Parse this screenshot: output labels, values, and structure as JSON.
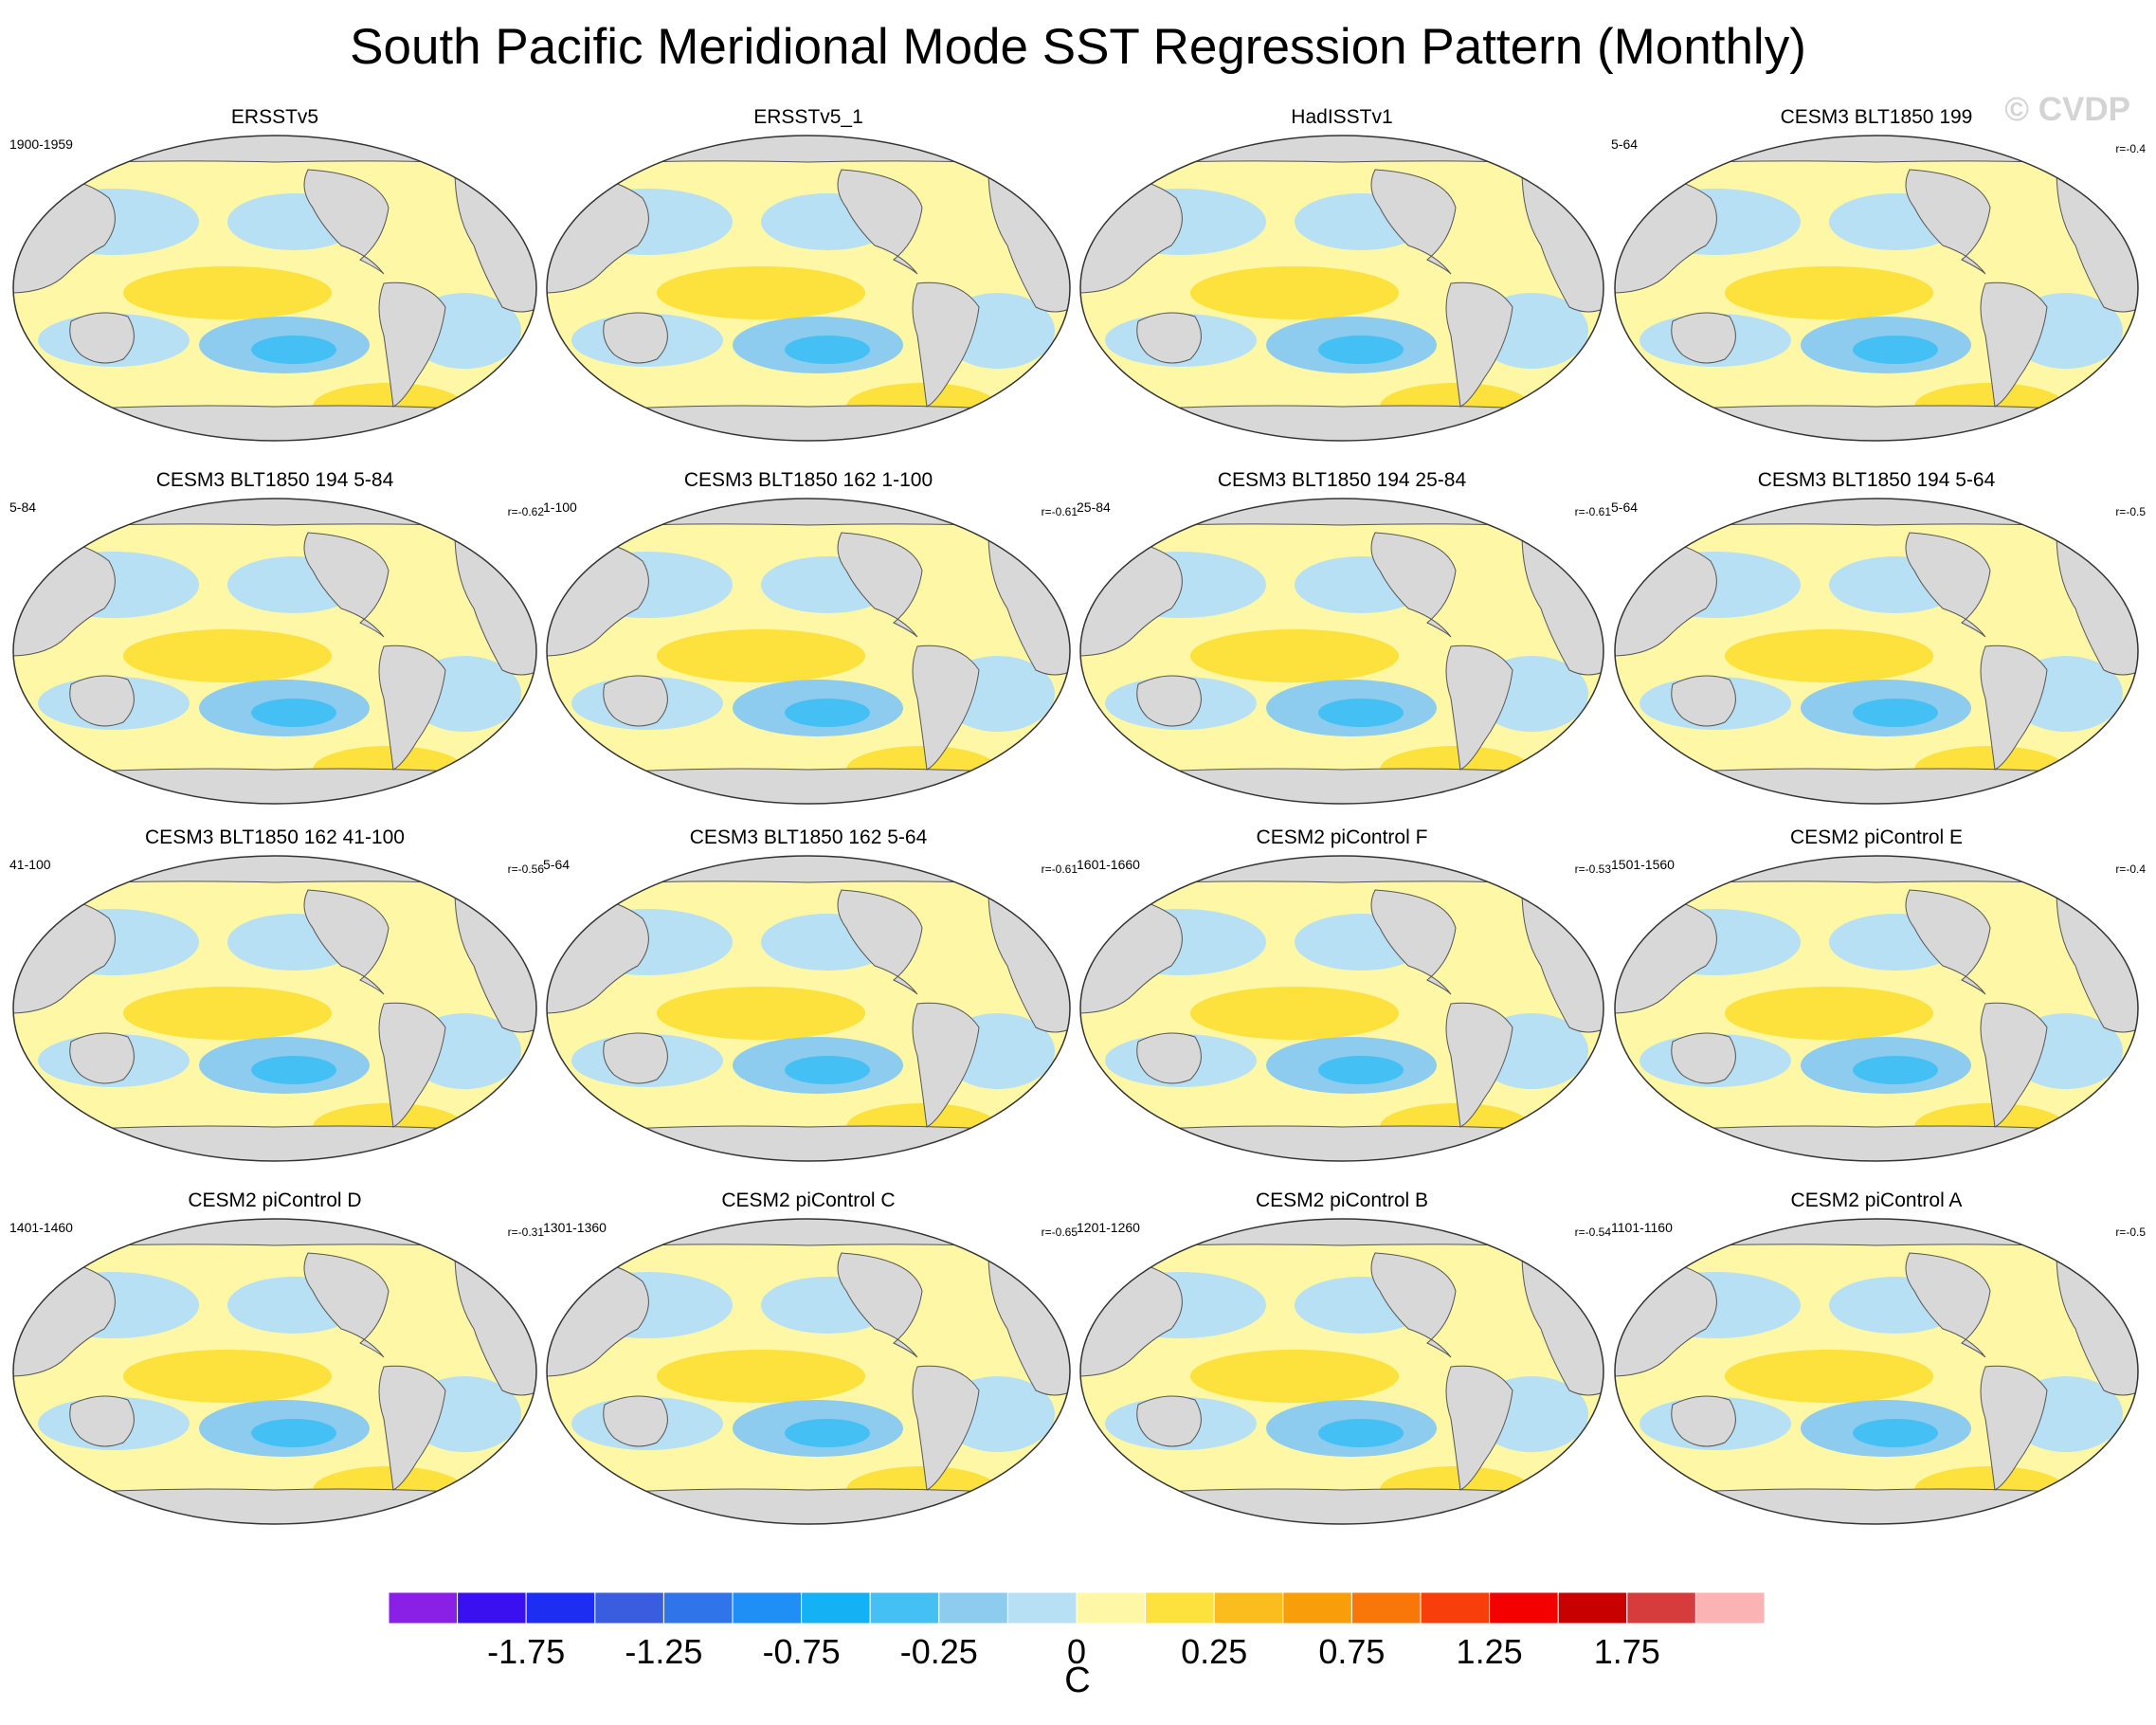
{
  "title": "South Pacific Meridional Mode SST Regression Pattern (Monthly)",
  "watermark": "© CVDP",
  "panels": [
    {
      "title": "ERSSTv5",
      "years": "1900-1959",
      "corr": ""
    },
    {
      "title": "ERSSTv5_1",
      "years": "",
      "corr": ""
    },
    {
      "title": "HadISSTv1",
      "years": "",
      "corr": ""
    },
    {
      "title": "CESM3 BLT1850 199",
      "years": "5-64",
      "corr": "r=-0.4"
    },
    {
      "title": "CESM3 BLT1850 194 5-84",
      "years": "5-84",
      "corr": "r=-0.62"
    },
    {
      "title": "CESM3 BLT1850 162 1-100",
      "years": "1-100",
      "corr": "r=-0.61"
    },
    {
      "title": "CESM3 BLT1850 194 25-84",
      "years": "25-84",
      "corr": "r=-0.61"
    },
    {
      "title": "CESM3 BLT1850 194 5-64",
      "years": "5-64",
      "corr": "r=-0.5"
    },
    {
      "title": "CESM3 BLT1850 162 41-100",
      "years": "41-100",
      "corr": "r=-0.56"
    },
    {
      "title": "CESM3 BLT1850 162 5-64",
      "years": "5-64",
      "corr": "r=-0.61"
    },
    {
      "title": "CESM2 piControl F",
      "years": "1601-1660",
      "corr": "r=-0.53"
    },
    {
      "title": "CESM2 piControl E",
      "years": "1501-1560",
      "corr": "r=-0.4"
    },
    {
      "title": "CESM2 piControl D",
      "years": "1401-1460",
      "corr": "r=-0.31"
    },
    {
      "title": "CESM2 piControl C",
      "years": "1301-1360",
      "corr": "r=-0.65"
    },
    {
      "title": "CESM2 piControl B",
      "years": "1201-1260",
      "corr": "r=-0.54"
    },
    {
      "title": "CESM2 piControl A",
      "years": "1101-1160",
      "corr": "r=-0.5"
    }
  ],
  "colorbar": {
    "units": "C",
    "colors": [
      "#8a1fe6",
      "#3a0ff0",
      "#1d2ef2",
      "#3a5ddf",
      "#2f74e8",
      "#1f8ef5",
      "#14b1f5",
      "#45c0f4",
      "#8dcbef",
      "#b7e0f4",
      "#fef8a6",
      "#fde13c",
      "#fbbd1d",
      "#fa9d0a",
      "#f97708",
      "#f83f0b",
      "#f40000",
      "#c90000",
      "#d73c3c",
      "#fcb3b3"
    ],
    "ticks": [
      {
        "label": "-1.75",
        "boundary": 2
      },
      {
        "label": "-1.25",
        "boundary": 4
      },
      {
        "label": "-0.75",
        "boundary": 6
      },
      {
        "label": "-0.25",
        "boundary": 8
      },
      {
        "label": "0",
        "boundary": 10
      },
      {
        "label": "0.25",
        "boundary": 12
      },
      {
        "label": "0.75",
        "boundary": 14
      },
      {
        "label": "1.25",
        "boundary": 16
      },
      {
        "label": "1.75",
        "boundary": 18
      }
    ]
  },
  "chart_data": {
    "type": "heatmap",
    "title": "South Pacific Meridional Mode SST Regression Pattern (Monthly)",
    "projection": "Robinson, Pacific-centered",
    "variable": "SST regression",
    "units": "C",
    "contour_levels": [
      -2,
      -1.75,
      -1.5,
      -1.25,
      -1,
      -0.75,
      -0.5,
      -0.25,
      -0.1,
      0,
      0.1,
      0.25,
      0.5,
      0.75,
      1,
      1.25,
      1.5,
      1.75,
      2
    ],
    "panels": [
      {
        "name": "ERSSTv5",
        "period": "1900-1959"
      },
      {
        "name": "ERSSTv5_1"
      },
      {
        "name": "HadISSTv1"
      },
      {
        "name": "CESM3 BLT1850 199",
        "period": "5-64",
        "r": -0.4
      },
      {
        "name": "CESM3 BLT1850 194 5-84",
        "period": "5-84",
        "r": -0.62
      },
      {
        "name": "CESM3 BLT1850 162 1-100",
        "period": "1-100",
        "r": -0.61
      },
      {
        "name": "CESM3 BLT1850 194 25-84",
        "period": "25-84",
        "r": -0.61
      },
      {
        "name": "CESM3 BLT1850 194 5-64",
        "period": "5-64",
        "r": -0.5
      },
      {
        "name": "CESM3 BLT1850 162 41-100",
        "period": "41-100",
        "r": -0.56
      },
      {
        "name": "CESM3 BLT1850 162 5-64",
        "period": "5-64",
        "r": -0.61
      },
      {
        "name": "CESM2 piControl F",
        "period": "1601-1660",
        "r": -0.53
      },
      {
        "name": "CESM2 piControl E",
        "period": "1501-1560",
        "r": -0.4
      },
      {
        "name": "CESM2 piControl D",
        "period": "1401-1460",
        "r": -0.31
      },
      {
        "name": "CESM2 piControl C",
        "period": "1301-1360",
        "r": -0.65
      },
      {
        "name": "CESM2 piControl B",
        "period": "1201-1260",
        "r": -0.54
      },
      {
        "name": "CESM2 piControl A",
        "period": "1101-1160",
        "r": -0.5
      }
    ]
  }
}
